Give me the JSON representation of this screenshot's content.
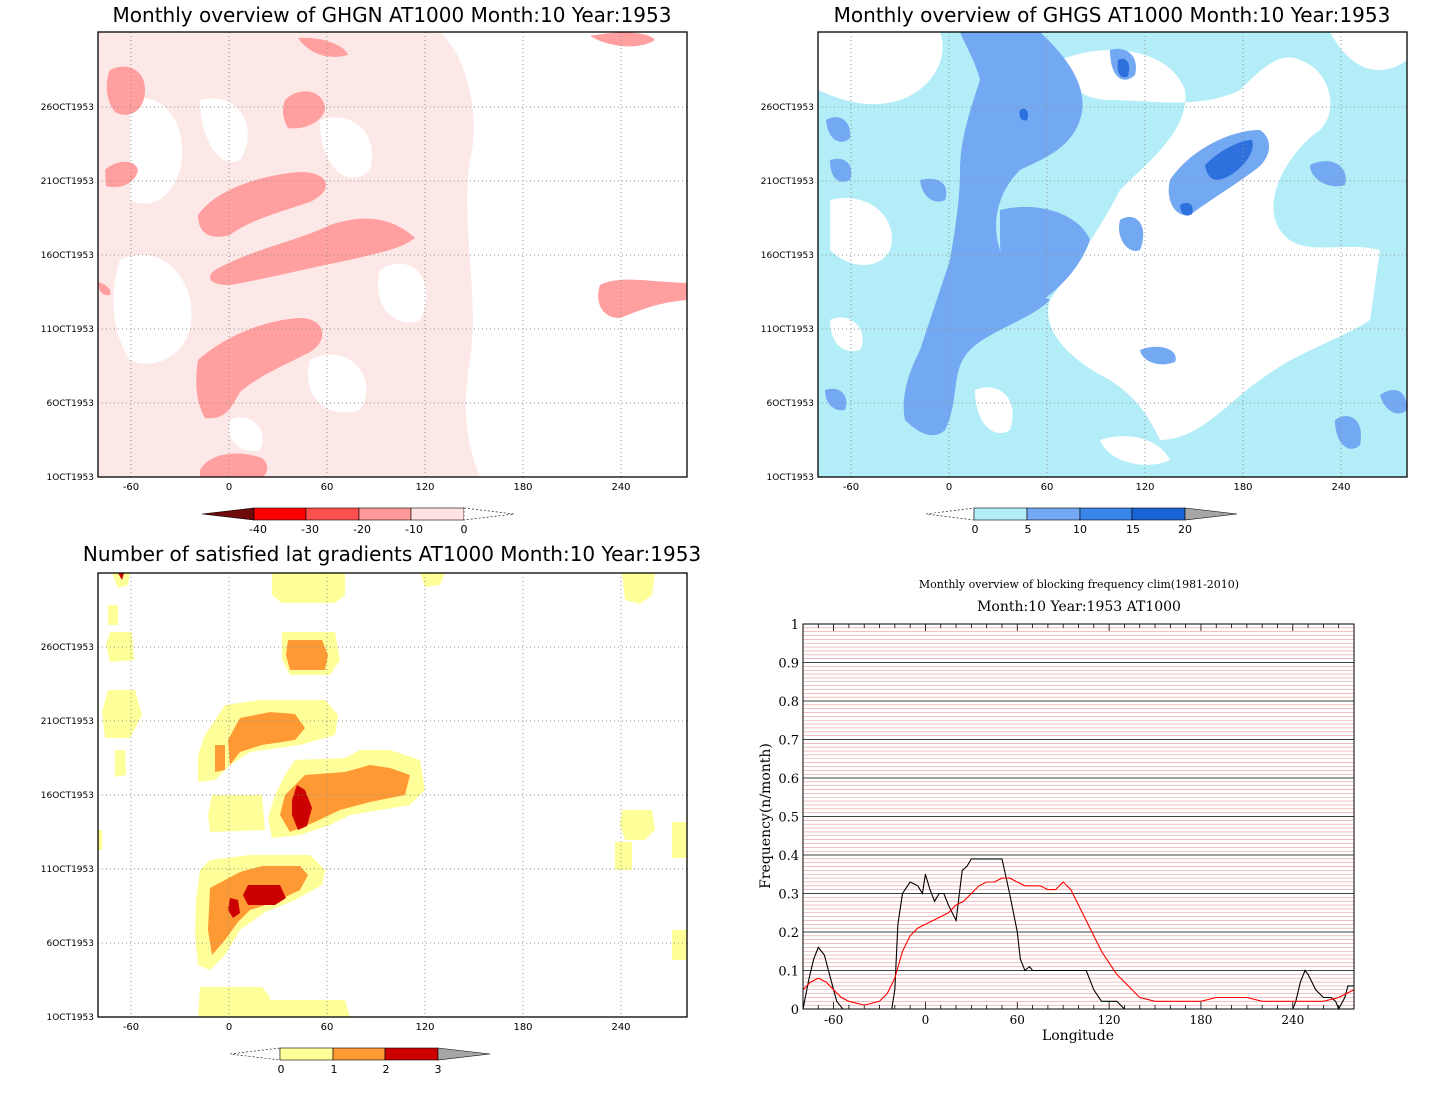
{
  "panels": {
    "ghgn": {
      "title": "Monthly overview of GHGN AT1000 Month:10 Year:1953",
      "colorbar_labels": [
        "-40",
        "-30",
        "-20",
        "-10",
        "0"
      ],
      "colorbar_colors": [
        "#6e0a0a",
        "#ff0000",
        "#ff5050",
        "#ff9999",
        "#ffe3e3"
      ],
      "field_colors": {
        "background": "#fde8e8",
        "light": "#ffffff",
        "strong": "#ff9f9f"
      }
    },
    "ghgs": {
      "title": "Monthly overview of GHGS AT1000 Month:10 Year:1953",
      "colorbar_labels": [
        "0",
        "5",
        "10",
        "15",
        "20"
      ],
      "colorbar_colors": [
        "#b3eef8",
        "#73a9f2",
        "#3a85ea",
        "#1a63d6",
        "#a6a6a6"
      ],
      "field_colors": {
        "background": "#b3eef8",
        "light": "#ffffff",
        "mid": "#73a9f2",
        "strong": "#2e70dd"
      }
    },
    "gradients": {
      "title": "Number of satisfied lat gradients AT1000 Month:10 Year:1953",
      "colorbar_labels": [
        "0",
        "1",
        "2",
        "3"
      ],
      "colorbar_colors": [
        "#ffff99",
        "#ff9933",
        "#cc0000",
        "#a6a6a6"
      ],
      "field_colors": {
        "c1": "#ffff99",
        "c2": "#ff9933",
        "c3": "#cc0000"
      }
    }
  },
  "map_axes": {
    "x_ticks": [
      -60,
      0,
      60,
      120,
      180,
      240
    ],
    "x_range": [
      -80,
      280
    ],
    "y_ticks": [
      "1OCT1953",
      "6OCT1953",
      "11OCT1953",
      "16OCT1953",
      "21OCT1953",
      "26OCT1953"
    ],
    "y_tick_days": [
      1,
      6,
      11,
      16,
      21,
      26
    ],
    "y_range_days": [
      1,
      31
    ]
  },
  "chart_data": {
    "type": "line",
    "title": "Monthly overview of blocking frequency clim(1981-2010)",
    "subtitle": "Month:10 Year:1953  AT1000",
    "xlabel": "Longitude",
    "ylabel": "Frequency(n/month)",
    "xlim": [
      -80,
      280
    ],
    "ylim": [
      0,
      1
    ],
    "x_ticks": [
      -60,
      0,
      60,
      120,
      180,
      240
    ],
    "y_ticks": [
      0,
      0.1,
      0.2,
      0.3,
      0.4,
      0.5,
      0.6,
      0.7,
      0.8,
      0.9,
      1
    ],
    "y_tick_labels": [
      "0",
      "0.1",
      "0.2",
      "0.3",
      "0.4",
      "0.5",
      "0.6",
      "0.7",
      "0.8",
      "0.9",
      "1"
    ],
    "grid": true,
    "series": [
      {
        "color": "#000000",
        "x": [
          -80,
          -76,
          -73,
          -70,
          -66,
          -62,
          -58,
          -54,
          -50,
          -40,
          -30,
          -22,
          -20,
          -18,
          -15,
          -10,
          -5,
          -2,
          0,
          3,
          6,
          9,
          12,
          15,
          20,
          24,
          27,
          30,
          34,
          38,
          42,
          46,
          50,
          55,
          60,
          62,
          65,
          68,
          70,
          72,
          75,
          80,
          90,
          100,
          105,
          110,
          115,
          118,
          120,
          125,
          130,
          150,
          200,
          240,
          242,
          245,
          248,
          250,
          255,
          260,
          265,
          268,
          270,
          274,
          276,
          280
        ],
        "y": [
          0.0,
          0.08,
          0.13,
          0.16,
          0.14,
          0.08,
          0.02,
          0.0,
          0.0,
          0.0,
          0.0,
          0.0,
          0.05,
          0.22,
          0.3,
          0.33,
          0.32,
          0.3,
          0.35,
          0.31,
          0.28,
          0.3,
          0.3,
          0.27,
          0.23,
          0.36,
          0.37,
          0.39,
          0.39,
          0.39,
          0.39,
          0.39,
          0.39,
          0.3,
          0.2,
          0.13,
          0.1,
          0.11,
          0.1,
          0.1,
          0.1,
          0.1,
          0.1,
          0.1,
          0.1,
          0.05,
          0.02,
          0.02,
          0.02,
          0.02,
          0.0,
          0.0,
          0.0,
          0.0,
          0.02,
          0.07,
          0.1,
          0.09,
          0.05,
          0.03,
          0.03,
          0.02,
          0.0,
          0.03,
          0.06,
          0.06
        ]
      },
      {
        "color": "#ff0000",
        "x": [
          -80,
          -75,
          -70,
          -65,
          -60,
          -55,
          -50,
          -40,
          -30,
          -25,
          -20,
          -15,
          -10,
          -5,
          0,
          5,
          10,
          15,
          20,
          25,
          30,
          35,
          40,
          45,
          50,
          55,
          60,
          65,
          70,
          75,
          80,
          85,
          90,
          95,
          100,
          105,
          110,
          115,
          120,
          125,
          130,
          135,
          140,
          150,
          160,
          170,
          180,
          190,
          200,
          210,
          220,
          230,
          240,
          250,
          260,
          270,
          275,
          280
        ],
        "y": [
          0.05,
          0.07,
          0.08,
          0.07,
          0.05,
          0.03,
          0.02,
          0.01,
          0.02,
          0.04,
          0.08,
          0.15,
          0.19,
          0.21,
          0.22,
          0.23,
          0.24,
          0.25,
          0.27,
          0.28,
          0.3,
          0.32,
          0.33,
          0.33,
          0.34,
          0.34,
          0.33,
          0.32,
          0.32,
          0.32,
          0.31,
          0.31,
          0.33,
          0.31,
          0.27,
          0.23,
          0.19,
          0.15,
          0.12,
          0.09,
          0.07,
          0.05,
          0.03,
          0.02,
          0.02,
          0.02,
          0.02,
          0.03,
          0.03,
          0.03,
          0.02,
          0.02,
          0.02,
          0.02,
          0.02,
          0.03,
          0.04,
          0.05
        ]
      }
    ]
  }
}
